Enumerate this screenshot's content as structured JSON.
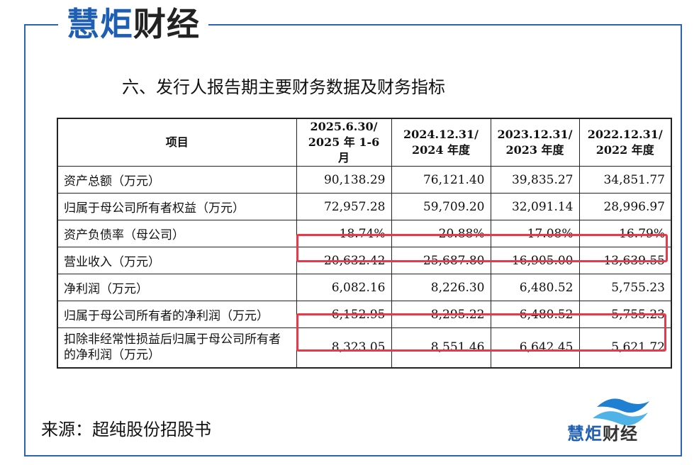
{
  "brand": {
    "part1": "慧炬",
    "part2": "财经"
  },
  "doc_title": "六、发行人报告期主要财务数据及财务指标",
  "table": {
    "header": {
      "item": "项目",
      "cols": [
        {
          "line1": "2025.6.30/",
          "line2": "2025 年 1-6 月"
        },
        {
          "line1": "2024.12.31/",
          "line2": "2024 年度"
        },
        {
          "line1": "2023.12.31/",
          "line2": "2023 年度"
        },
        {
          "line1": "2022.12.31/",
          "line2": "2022 年度"
        }
      ]
    },
    "rows": [
      {
        "label": "资产总额（万元）",
        "values": [
          "90,138.29",
          "76,121.40",
          "39,835.27",
          "34,851.77"
        ]
      },
      {
        "label": "归属于母公司所有者权益（万元）",
        "values": [
          "72,957.28",
          "59,709.20",
          "32,091.14",
          "28,996.97"
        ]
      },
      {
        "label": "资产负债率（母公司）",
        "values": [
          "18.74%",
          "20.88%",
          "17.08%",
          "16.79%"
        ]
      },
      {
        "label": "营业收入（万元）",
        "values": [
          "20,632.42",
          "25,687.80",
          "16,905.00",
          "13,639.55"
        ]
      },
      {
        "label": "净利润（万元）",
        "values": [
          "6,082.16",
          "8,226.30",
          "6,480.52",
          "5,755.23"
        ]
      },
      {
        "label": "归属于母公司所有者的净利润（万元）",
        "values": [
          "6,152.95",
          "8,295.22",
          "6,480.52",
          "5,755.23"
        ]
      },
      {
        "label": "扣除非经常性损益后归属于母公司所有者的净利润（万元）",
        "values": [
          "8,323.05",
          "8,551.46",
          "6,642.45",
          "5,621.72"
        ]
      }
    ]
  },
  "source": "来源：超纯股份招股书",
  "logo_icon": "wave-logo-icon",
  "colors": {
    "brand_blue": "#1f5fb3",
    "frame_blue": "#2b63b6",
    "highlight_red": "#e8394a"
  }
}
